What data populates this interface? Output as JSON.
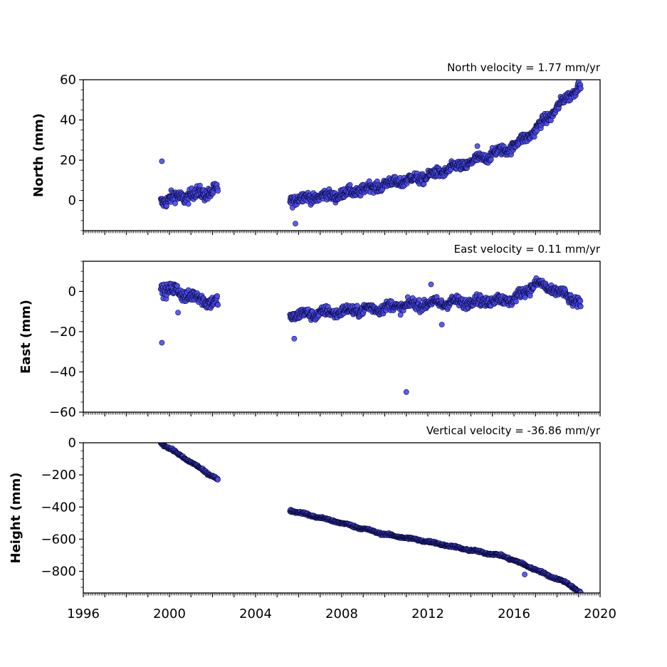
{
  "chart_data": [
    {
      "type": "scatter",
      "ylabel": "North (mm)",
      "annotation": "North velocity = 1.77 mm/yr",
      "xlim": [
        1996,
        2020
      ],
      "ylim": [
        -15,
        60
      ],
      "yticks": [
        0,
        20,
        40,
        60
      ],
      "ytick_labels": [
        "0",
        "20",
        "40",
        "60"
      ],
      "marker_color": "#4b4bf0",
      "segments": [
        {
          "x_start": 1999.6,
          "x_end": 2002.25,
          "y_start": 0,
          "y_end": 5,
          "scatter": 2.2
        },
        {
          "x_start": 2005.6,
          "x_end": 2019.1,
          "y_start": 0.5,
          "y_end": 58,
          "curve_knots": [
            [
              2005.6,
              0.5
            ],
            [
              2008,
              3
            ],
            [
              2010,
              8
            ],
            [
              2012,
              12
            ],
            [
              2014,
              19
            ],
            [
              2016,
              27
            ],
            [
              2017,
              35
            ],
            [
              2018,
              46
            ],
            [
              2019.1,
              58
            ]
          ],
          "scatter": 1.8
        }
      ],
      "outliers": [
        [
          1999.65,
          19.5
        ],
        [
          2005.85,
          -11.5
        ],
        [
          2014.3,
          27
        ]
      ]
    },
    {
      "type": "scatter",
      "ylabel": "East (mm)",
      "annotation": "East velocity = 0.11 mm/yr",
      "xlim": [
        1996,
        2020
      ],
      "ylim": [
        -60,
        15
      ],
      "yticks": [
        -60,
        -40,
        -20,
        0
      ],
      "ytick_labels": [
        "−60",
        "−40",
        "−20",
        "0"
      ],
      "marker_color": "#4b4bf0",
      "segments": [
        {
          "x_start": 1999.6,
          "x_end": 2002.25,
          "y_start": 2,
          "y_end": -6,
          "scatter": 2.2
        },
        {
          "x_start": 2005.6,
          "x_end": 2019.1,
          "y_start": -12,
          "y_end": -6,
          "curve_knots": [
            [
              2005.6,
              -12
            ],
            [
              2008,
              -10
            ],
            [
              2010,
              -8
            ],
            [
              2012,
              -6
            ],
            [
              2014,
              -5
            ],
            [
              2016,
              -4
            ],
            [
              2016.5,
              0
            ],
            [
              2017,
              4
            ],
            [
              2018,
              0
            ],
            [
              2019.1,
              -6
            ]
          ],
          "scatter": 1.8
        }
      ],
      "outliers": [
        [
          1999.65,
          -25.5
        ],
        [
          2000.4,
          -10.5
        ],
        [
          2005.8,
          -23.5
        ],
        [
          2011,
          -50
        ],
        [
          2012.15,
          3.5
        ],
        [
          2012.65,
          -16.5
        ]
      ]
    },
    {
      "type": "scatter",
      "ylabel": "Height (mm)",
      "annotation": "Vertical velocity = -36.86 mm/yr",
      "xlim": [
        1996,
        2020
      ],
      "ylim": [
        -935,
        0
      ],
      "yticks": [
        -800,
        -600,
        -400,
        -200,
        0
      ],
      "ytick_labels": [
        "−800",
        "−600",
        "−400",
        "−200",
        "0"
      ],
      "marker_color": "#4b4bf0",
      "segments": [
        {
          "x_start": 1999.6,
          "x_end": 2002.25,
          "y_start": 0,
          "y_end": -230,
          "scatter": 5
        },
        {
          "x_start": 2005.6,
          "x_end": 2019.1,
          "y_start": -420,
          "y_end": -935,
          "curve_knots": [
            [
              2005.6,
              -420
            ],
            [
              2008,
              -500
            ],
            [
              2010,
              -570
            ],
            [
              2012,
              -615
            ],
            [
              2014,
              -670
            ],
            [
              2015.5,
              -705
            ],
            [
              2016.5,
              -760
            ],
            [
              2017.5,
              -820
            ],
            [
              2018.5,
              -875
            ],
            [
              2019.1,
              -935
            ]
          ],
          "scatter": 5
        }
      ],
      "outliers": [
        [
          2016.5,
          -820
        ]
      ]
    }
  ],
  "x_axis": {
    "ticks": [
      1996,
      2000,
      2004,
      2008,
      2012,
      2016,
      2020
    ],
    "tick_labels": [
      "1996",
      "2000",
      "2004",
      "2008",
      "2012",
      "2016",
      "2020"
    ],
    "minor_per_year": 12,
    "major_every_years": 1
  }
}
